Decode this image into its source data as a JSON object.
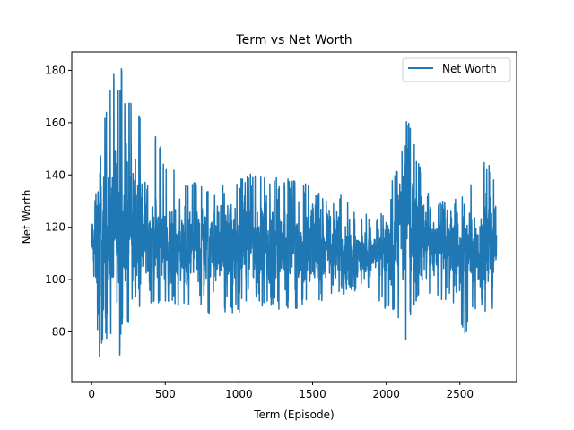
{
  "chart_data": {
    "type": "line",
    "title": "Term vs Net Worth",
    "xlabel": "Term (Episode)",
    "ylabel": "Net Worth",
    "xlim": [
      -135,
      2885
    ],
    "ylim": [
      61,
      187
    ],
    "x_ticks": [
      0,
      500,
      1000,
      1500,
      2000,
      2500
    ],
    "y_ticks": [
      80,
      100,
      120,
      140,
      160,
      180
    ],
    "grid": false,
    "legend_position": "top-right",
    "series": [
      {
        "name": "Net Worth",
        "color": "#1f77b4",
        "x_start": 0,
        "x_step": 1,
        "count": 2750,
        "envelope": {
          "x": [
            0,
            20,
            50,
            60,
            80,
            100,
            130,
            160,
            190,
            200,
            230,
            260,
            300,
            310,
            340,
            400,
            450,
            500,
            600,
            700,
            800,
            900,
            1000,
            1100,
            1200,
            1300,
            1400,
            1500,
            1600,
            1700,
            1800,
            1900,
            2000,
            2050,
            2100,
            2120,
            2140,
            2170,
            2200,
            2250,
            2300,
            2400,
            2450,
            2500,
            2540,
            2560,
            2600,
            2650,
            2700,
            2740
          ],
          "upper": [
            123,
            140,
            167,
            150,
            165,
            165,
            175,
            182,
            170,
            182,
            168,
            170,
            174,
            169,
            160,
            160,
            155,
            145,
            140,
            138,
            137,
            137,
            138,
            142,
            138,
            140,
            137,
            137,
            130,
            133,
            125,
            125,
            128,
            140,
            150,
            155,
            162,
            158,
            150,
            140,
            130,
            130,
            130,
            135,
            130,
            140,
            138,
            145,
            145,
            140
          ],
          "lower": [
            80,
            84,
            66,
            76,
            72,
            78,
            69,
            70,
            69,
            80,
            80,
            82,
            75,
            85,
            88,
            88,
            90,
            90,
            90,
            88,
            87,
            87,
            87,
            89,
            90,
            88,
            88,
            90,
            90,
            94,
            95,
            96,
            88,
            86,
            80,
            75,
            77,
            85,
            90,
            93,
            92,
            92,
            90,
            86,
            74,
            85,
            88,
            90,
            85,
            90
          ],
          "center": [
            115,
            113,
            113,
            112,
            113,
            115,
            117,
            118,
            118,
            120,
            120,
            120,
            120,
            119,
            118,
            117,
            114,
            112,
            112,
            112,
            113,
            114,
            113,
            115,
            114,
            115,
            113,
            113,
            111,
            111,
            110,
            110,
            111,
            116,
            120,
            120,
            121,
            121,
            119,
            117,
            113,
            112,
            111,
            110,
            109,
            111,
            111,
            113,
            113,
            113
          ]
        },
        "last_value": 117
      }
    ]
  }
}
